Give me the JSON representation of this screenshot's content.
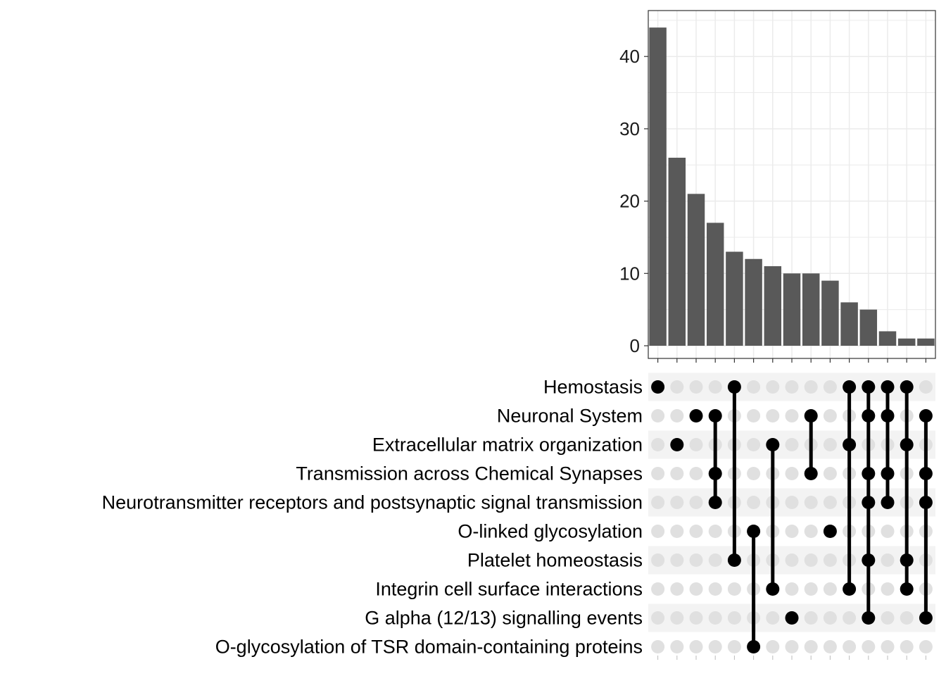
{
  "chart_data": {
    "type": "upset",
    "sets": [
      "Hemostasis",
      "Neuronal System",
      "Extracellular matrix organization",
      "Transmission across Chemical Synapses",
      "Neurotransmitter receptors and postsynaptic signal transmission",
      "O-linked glycosylation",
      "Platelet homeostasis",
      "Integrin cell surface interactions",
      "G alpha (12/13) signalling events",
      "O-glycosylation of TSR domain-containing proteins"
    ],
    "intersections": [
      {
        "size": 44,
        "members": [
          0
        ]
      },
      {
        "size": 26,
        "members": [
          2
        ]
      },
      {
        "size": 21,
        "members": [
          1
        ]
      },
      {
        "size": 17,
        "members": [
          1,
          3,
          4
        ]
      },
      {
        "size": 13,
        "members": [
          0,
          6
        ]
      },
      {
        "size": 12,
        "members": [
          5,
          9
        ]
      },
      {
        "size": 11,
        "members": [
          2,
          7
        ]
      },
      {
        "size": 10,
        "members": [
          8
        ]
      },
      {
        "size": 10,
        "members": [
          1,
          3
        ]
      },
      {
        "size": 9,
        "members": [
          5
        ]
      },
      {
        "size": 6,
        "members": [
          0,
          2,
          7
        ]
      },
      {
        "size": 5,
        "members": [
          0,
          1,
          3,
          4,
          6,
          8
        ]
      },
      {
        "size": 2,
        "members": [
          0,
          1,
          3,
          4
        ]
      },
      {
        "size": 1,
        "members": [
          0,
          2,
          6,
          7
        ]
      },
      {
        "size": 1,
        "members": [
          1,
          3,
          4,
          8
        ]
      }
    ],
    "y_ticks": [
      0,
      10,
      20,
      30,
      40
    ],
    "ylim": [
      0,
      46.5
    ],
    "title": "",
    "xlabel": "",
    "ylabel": "",
    "colors": {
      "bar": "#595959",
      "dot_active": "#000000",
      "dot_inactive": "#e0e0e0",
      "stripe": "#f3f3f3",
      "grid": "#ebebeb",
      "axis": "#333333"
    }
  }
}
